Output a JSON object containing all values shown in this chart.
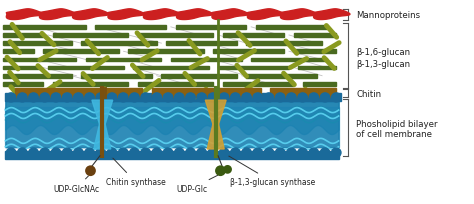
{
  "fig_width": 4.74,
  "fig_height": 2.05,
  "dpi": 100,
  "mannoproteins_color": "#cc2020",
  "glucan_long_color": "#4a6a20",
  "glucan_short_color": "#8a9a20",
  "connector_color": "#bbbbbb",
  "chitin_color": "#8B6010",
  "membrane_circle_color": "#1a6a9a",
  "membrane_wave_color": "#1a8ab0",
  "enzyme_chitin_color": "#40b8e0",
  "enzyme_glucan_color": "#d4a030",
  "enzyme_stem_chitin": "#7a5010",
  "enzyme_stem_glucan": "#5a7a20",
  "udp_dot1_color": "#6a4010",
  "udp_dot2_color": "#3a5a10",
  "label_color": "#222222",
  "bracket_color": "#555555",
  "bg_color": "#ffffff",
  "labels": {
    "mannoproteins": "Mannoproteins",
    "beta16": "β-1,6-glucan",
    "beta13": "β-1,3-glucan",
    "chitin": "Chitin",
    "phospholipid": "Phosholipid bilayer\nof cell membrane",
    "chitin_synthase": "Chitin synthase",
    "glucan_synthase": "β-1,3-glucan synthase",
    "udp_glcnac": "UDP-GlcNAc",
    "udp_glc": "UDP-Glc"
  }
}
